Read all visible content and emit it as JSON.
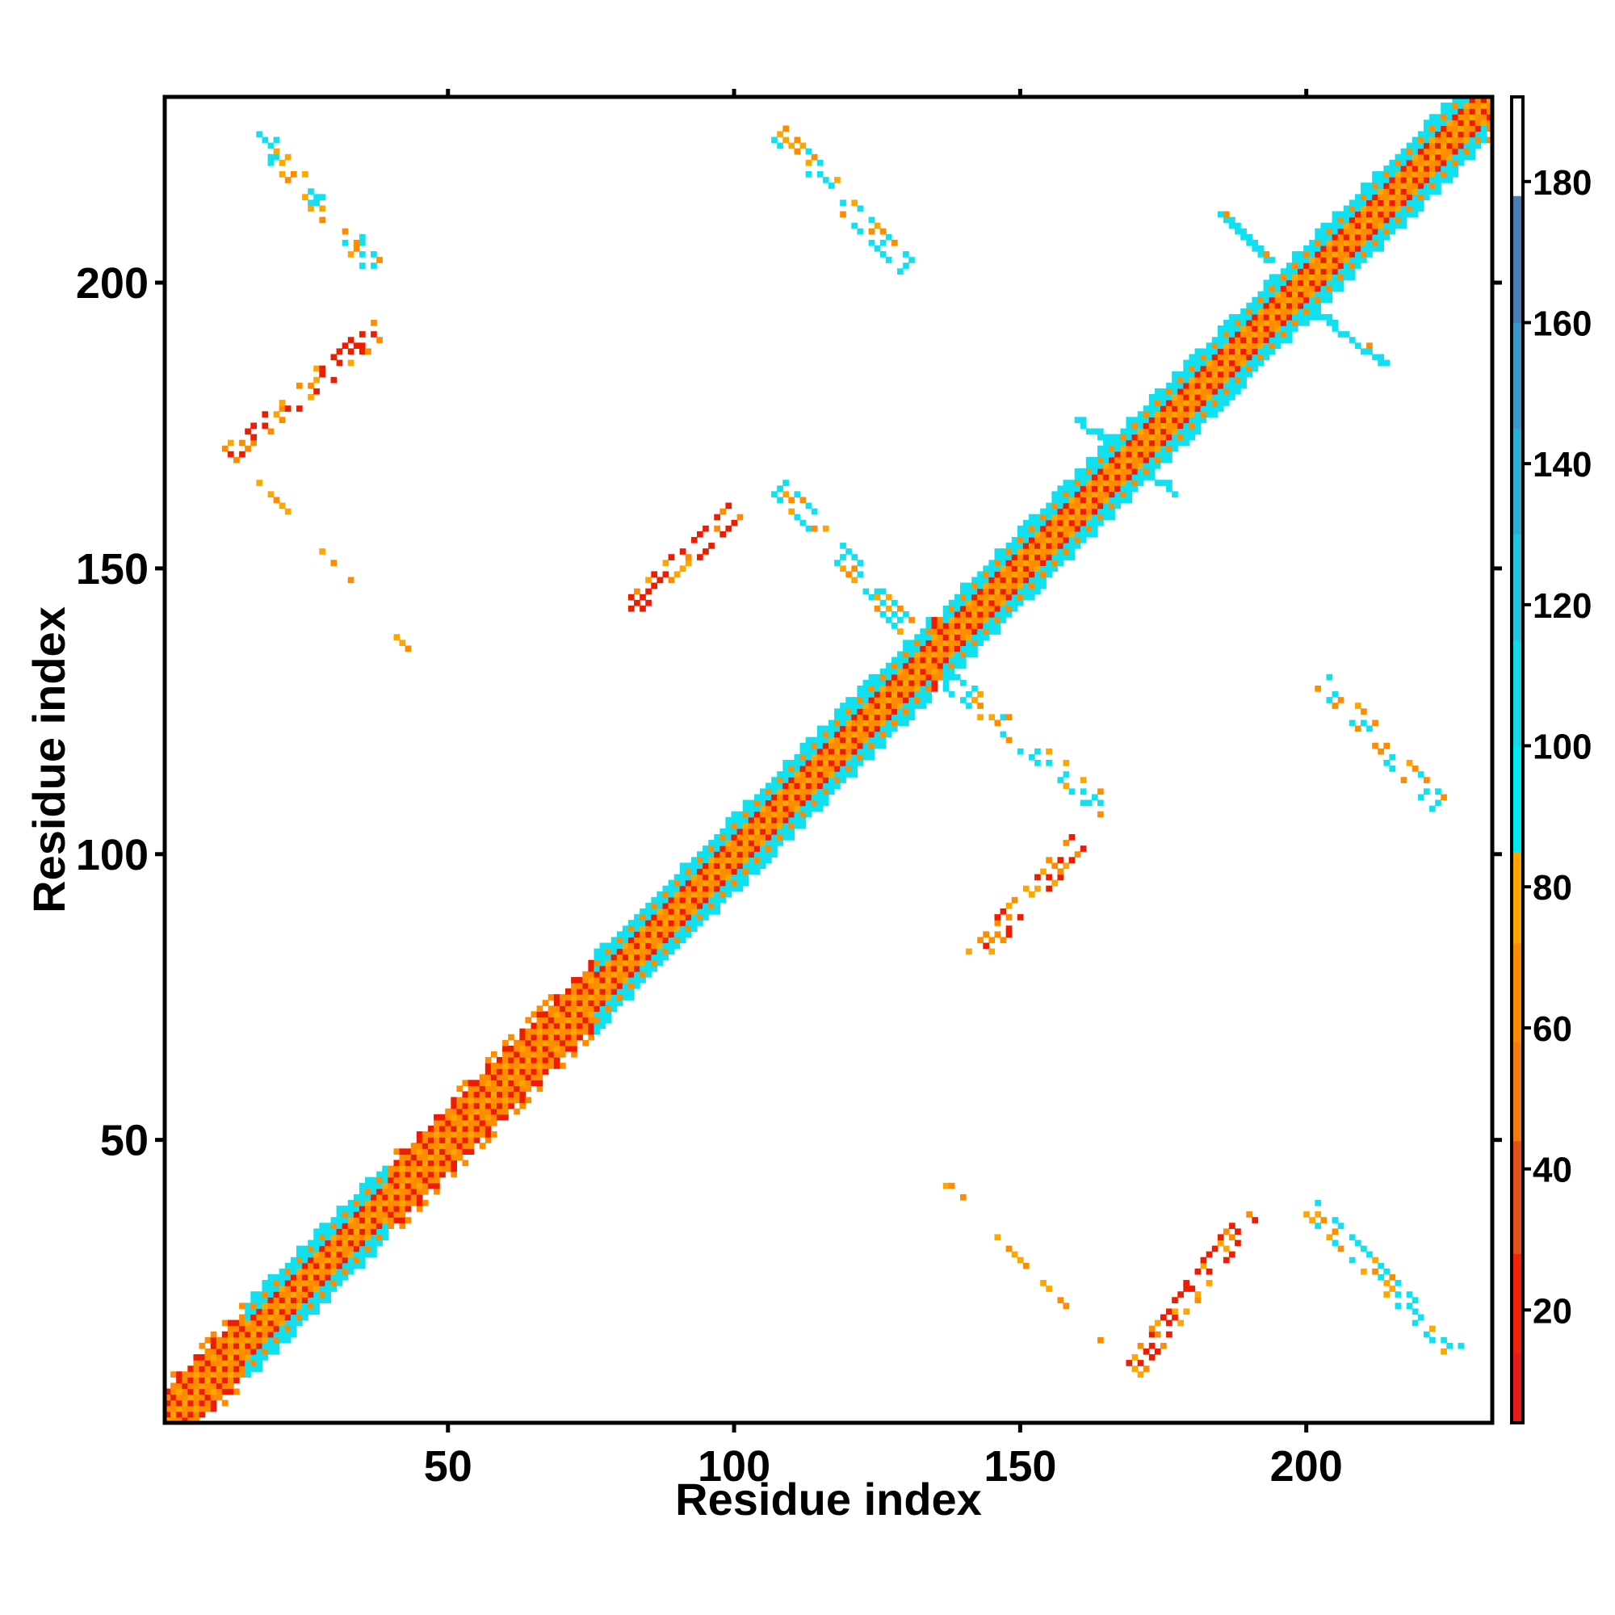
{
  "chart_data": {
    "type": "heatmap",
    "title": "",
    "xlabel": "Residue index",
    "ylabel": "Residue index",
    "xlim": [
      1,
      232
    ],
    "ylim": [
      1,
      232
    ],
    "xticks": [
      50,
      100,
      150,
      200
    ],
    "yticks": [
      50,
      100,
      150,
      200
    ],
    "colorbar": {
      "range": [
        4,
        192
      ],
      "ticks": [
        20,
        40,
        60,
        80,
        100,
        120,
        140,
        160,
        180
      ],
      "segments": [
        {
          "from": 4,
          "to": 14,
          "color": "#e41a1c"
        },
        {
          "from": 14,
          "to": 28,
          "color": "#f5220a"
        },
        {
          "from": 28,
          "to": 44,
          "color": "#e8501a"
        },
        {
          "from": 44,
          "to": 58,
          "color": "#f57a10"
        },
        {
          "from": 58,
          "to": 72,
          "color": "#ff8c00"
        },
        {
          "from": 72,
          "to": 85,
          "color": "#ffa500"
        },
        {
          "from": 85,
          "to": 100,
          "color": "#00e8f0"
        },
        {
          "from": 100,
          "to": 115,
          "color": "#15d8e6"
        },
        {
          "from": 115,
          "to": 130,
          "color": "#22c4dc"
        },
        {
          "from": 130,
          "to": 145,
          "color": "#2aaed4"
        },
        {
          "from": 145,
          "to": 160,
          "color": "#3a98c8"
        },
        {
          "from": 160,
          "to": 178,
          "color": "#4a7eb8"
        },
        {
          "from": 178,
          "to": 192,
          "color": "#ffffff"
        }
      ]
    },
    "cell_colors": {
      "red": "#ee1c00",
      "orange": "#ff8c00",
      "yellow": "#ffa500",
      "cyan": "#10e0f0"
    },
    "diagonal_band": {
      "from": 1,
      "to": 232
    },
    "contacts": [
      {
        "x": [
          17,
          37
        ],
        "y": [
          226,
          203
        ],
        "pattern": "anti"
      },
      {
        "x": [
          108,
          130
        ],
        "y": [
          226,
          203
        ],
        "pattern": "anti"
      },
      {
        "x": [
          12,
          38
        ],
        "y": [
          170,
          192
        ],
        "pattern": "par"
      },
      {
        "x": [
          17,
          33
        ],
        "y": [
          165,
          148
        ],
        "pattern": "anti",
        "sparse": true
      },
      {
        "x": [
          38,
          43
        ],
        "y": [
          140,
          136
        ],
        "pattern": "anti",
        "sparse": true
      },
      {
        "x": [
          82,
          100
        ],
        "y": [
          143,
          160
        ],
        "pattern": "par"
      },
      {
        "x": [
          108,
          130
        ],
        "y": [
          164,
          140
        ],
        "pattern": "anti"
      },
      {
        "x": [
          138,
          165
        ],
        "y": [
          130,
          108
        ],
        "pattern": "anti"
      },
      {
        "x": [
          203,
          224
        ],
        "y": [
          130,
          108
        ],
        "pattern": "anti"
      },
      {
        "x": [
          142,
          160
        ],
        "y": [
          82,
          102
        ],
        "pattern": "par"
      },
      {
        "x": [
          136,
          140
        ],
        "y": [
          43,
          40
        ],
        "pattern": "anti",
        "sparse": true
      },
      {
        "x": [
          146,
          164
        ],
        "y": [
          33,
          15
        ],
        "pattern": "anti",
        "sparse": true
      },
      {
        "x": [
          170,
          190
        ],
        "y": [
          10,
          37
        ],
        "pattern": "par"
      },
      {
        "x": [
          201,
          226
        ],
        "y": [
          38,
          13
        ],
        "pattern": "anti"
      },
      {
        "x": [
          185,
          193
        ],
        "y": [
          212,
          204
        ],
        "pattern": "cross"
      },
      {
        "x": [
          201,
          213
        ],
        "y": [
          195,
          186
        ],
        "pattern": "cross"
      },
      {
        "x": [
          160,
          177
        ],
        "y": [
          176,
          163
        ],
        "pattern": "cross"
      }
    ]
  }
}
